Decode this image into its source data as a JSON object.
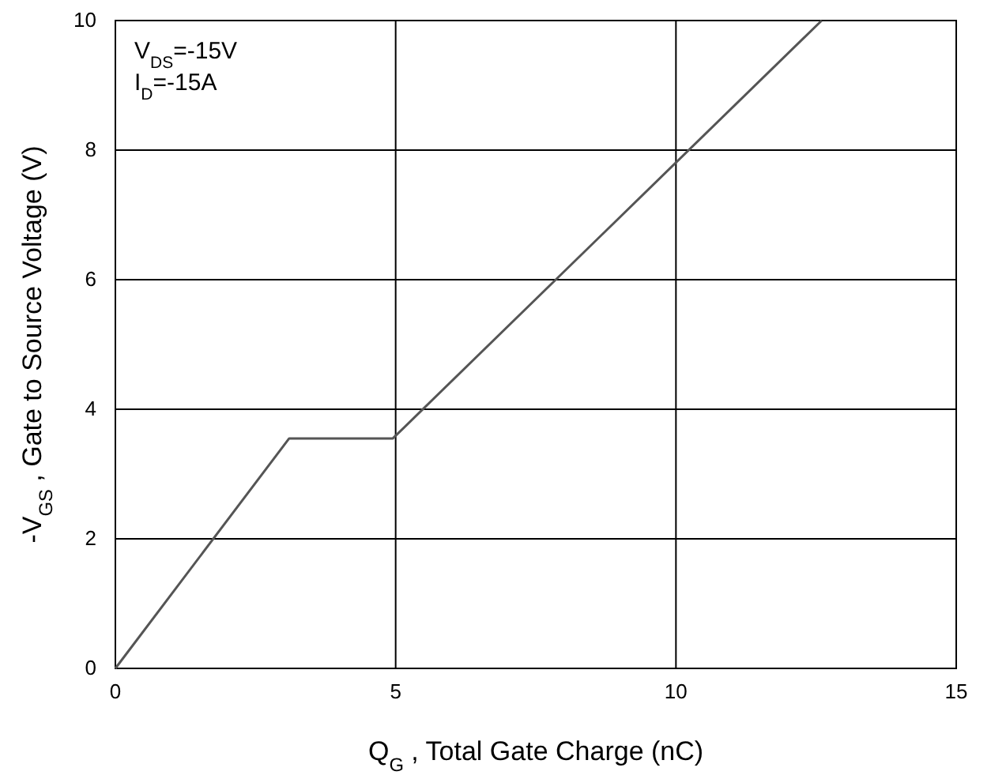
{
  "chart_data": {
    "type": "line",
    "xlabel": "Q$_{G}$ , Total Gate Charge (nC)",
    "ylabel": "-V$_{GS}$ , Gate to Source Voltage (V)",
    "x": [
      0,
      3.1,
      4.95,
      12.6
    ],
    "series": [
      {
        "color": "#555555",
        "values": [
          0,
          3.55,
          3.55,
          10
        ]
      }
    ],
    "xlim": [
      0,
      15
    ],
    "xticks": [
      0,
      5,
      10,
      15
    ],
    "ylim": [
      0,
      10
    ],
    "yticks": [
      0,
      2,
      4,
      6,
      8,
      10
    ],
    "grid": true,
    "marker": "none",
    "line_style": "solid",
    "annotations": [
      "V$_{DS}$=-15V",
      "I$_{D}$=-15A"
    ]
  }
}
